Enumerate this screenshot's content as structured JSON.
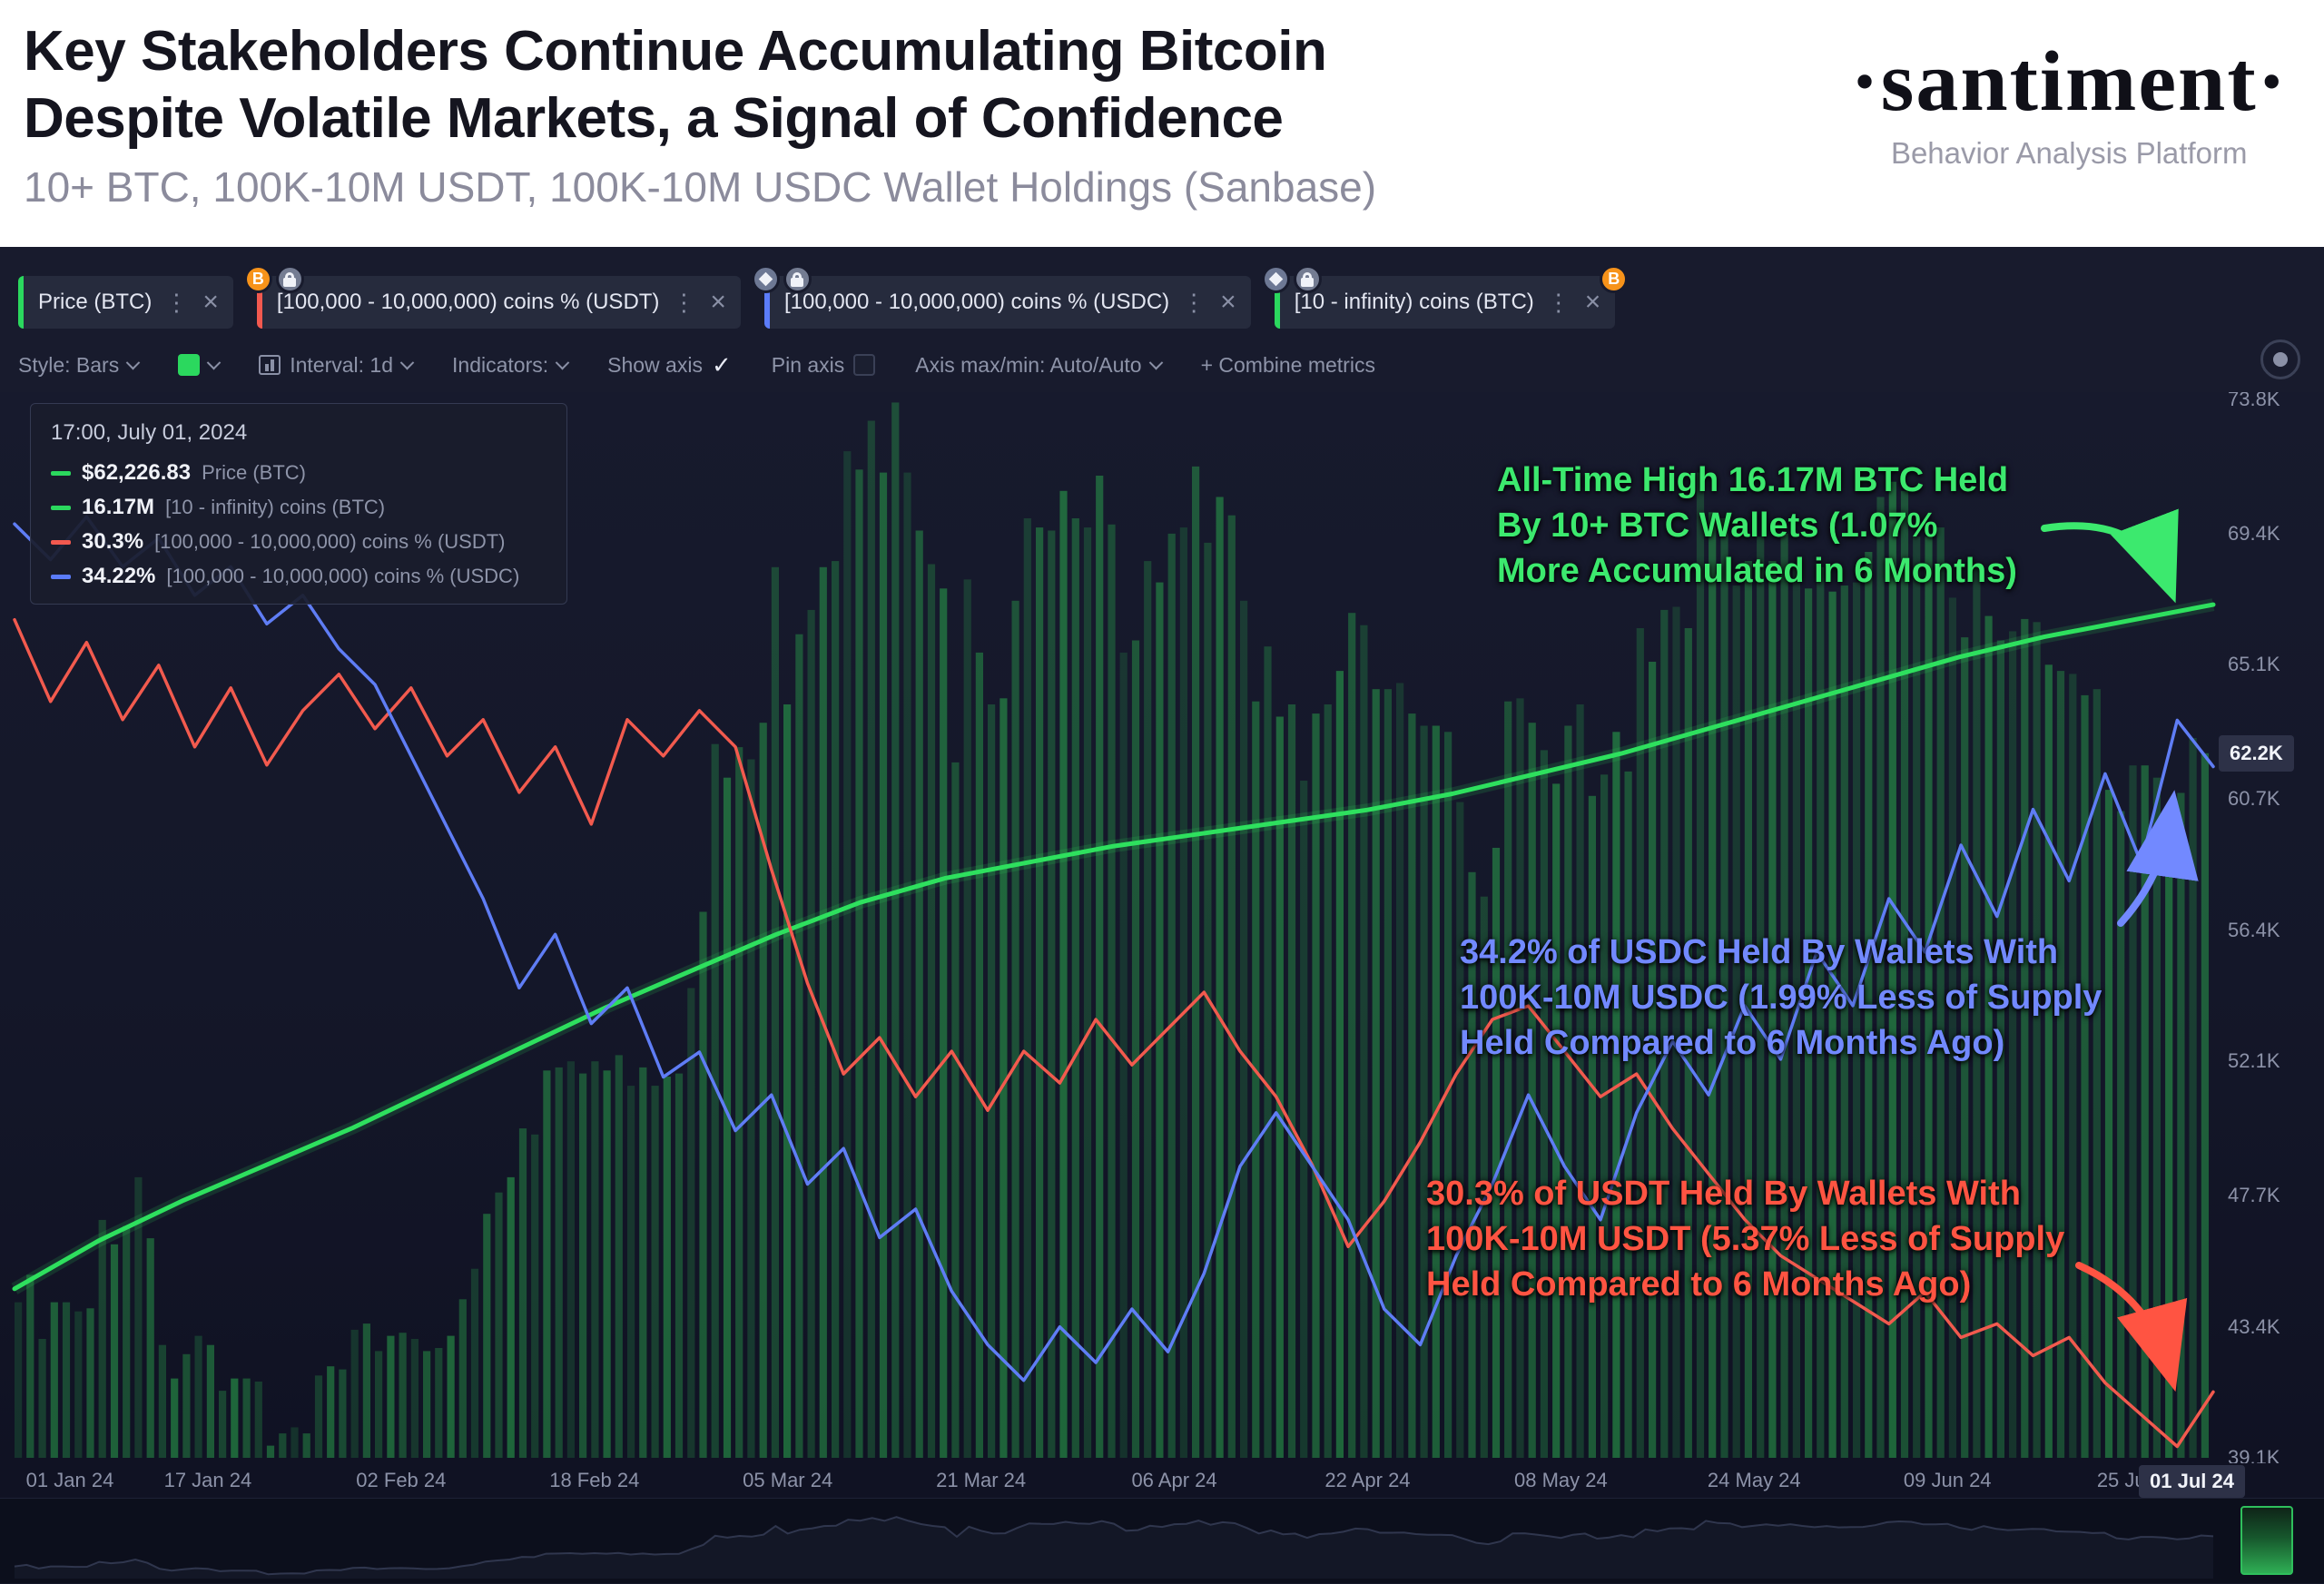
{
  "header": {
    "title_line1": "Key Stakeholders Continue Accumulating Bitcoin",
    "title_line2": "Despite Volatile Markets, a Signal of Confidence",
    "subtitle": "10+ BTC, 100K-10M USDT, 100K-10M USDC Wallet Holdings (Sanbase)",
    "brand": "·santiment·",
    "brand_tagline": "Behavior Analysis Platform"
  },
  "icons": {
    "kebab": "⋮",
    "close": "×",
    "check": "✓"
  },
  "tabs": [
    {
      "label": "Price (BTC)",
      "accent": "#2bd85e"
    },
    {
      "label": "[100,000 - 10,000,000) coins % (USDT)",
      "accent": "#f2594f"
    },
    {
      "label": "[100,000 - 10,000,000) coins % (USDC)",
      "accent": "#5b7cfa"
    },
    {
      "label": "[10 - infinity) coins (BTC)",
      "accent": "#2bd85e"
    }
  ],
  "toolbar": {
    "style_label": "Style: Bars",
    "interval_label": "Interval: 1d",
    "indicators_label": "Indicators:",
    "show_axis": "Show axis",
    "pin_axis": "Pin axis",
    "axis_maxmin": "Axis max/min: Auto/Auto",
    "combine_metrics": "+ Combine metrics"
  },
  "tooltip": {
    "timestamp": "17:00, July 01, 2024",
    "rows": [
      {
        "dash": "#2bd85e",
        "value": "$62,226.83",
        "label": "Price (BTC)"
      },
      {
        "dash": "#2bd85e",
        "value": "16.17M",
        "label": "[10 - infinity) coins (BTC)"
      },
      {
        "dash": "#f2594f",
        "value": "30.3%",
        "label": "[100,000 - 10,000,000) coins % (USDT)"
      },
      {
        "dash": "#5b7cfa",
        "value": "34.22%",
        "label": "[100,000 - 10,000,000) coins % (USDC)"
      }
    ]
  },
  "annotations": [
    {
      "color": "#3ce96e",
      "lines": [
        "All-Time High 16.17M BTC Held",
        "By 10+ BTC Wallets (1.07%",
        "More Accumulated in 6 Months)"
      ]
    },
    {
      "color": "#7289ff",
      "lines": [
        "34.2% of USDC Held By Wallets With",
        "100K-10M USDC (1.99% Less of Supply",
        "Held Compared to 6 Months Ago)"
      ]
    },
    {
      "color": "#ff5442",
      "lines": [
        "30.3% of USDT Held By Wallets With",
        "100K-10M USDT (5.37% Less of Supply",
        "Held Compared to 6 Months Ago)"
      ]
    }
  ],
  "axis": {
    "y_labels": [
      {
        "label": "73.8K",
        "value": 73.8
      },
      {
        "label": "69.4K",
        "value": 69.4
      },
      {
        "label": "65.1K",
        "value": 65.1
      },
      {
        "label": "60.7K",
        "value": 60.7
      },
      {
        "label": "56.4K",
        "value": 56.4
      },
      {
        "label": "52.1K",
        "value": 52.1
      },
      {
        "label": "47.7K",
        "value": 47.7
      },
      {
        "label": "43.4K",
        "value": 43.4
      },
      {
        "label": "39.1K",
        "value": 39.1
      }
    ],
    "y_badge": {
      "label": "62.2K",
      "value": 62.2
    },
    "x_labels": [
      {
        "label": "01 Jan 24",
        "day": 0
      },
      {
        "label": "17 Jan 24",
        "day": 16
      },
      {
        "label": "02 Feb 24",
        "day": 32
      },
      {
        "label": "18 Feb 24",
        "day": 48
      },
      {
        "label": "05 Mar 24",
        "day": 64
      },
      {
        "label": "21 Mar 24",
        "day": 80
      },
      {
        "label": "06 Apr 24",
        "day": 96
      },
      {
        "label": "22 Apr 24",
        "day": 112
      },
      {
        "label": "08 May 24",
        "day": 128
      },
      {
        "label": "24 May 24",
        "day": 144
      },
      {
        "label": "09 Jun 24",
        "day": 160
      },
      {
        "label": "25 Jun 24",
        "day": 176
      }
    ],
    "x_badge": {
      "label": "01 Jul 24",
      "day": 182
    }
  },
  "chart_data": {
    "type": "mixed",
    "title": "10+ BTC, 100K-10M USDT, 100K-10M USDC Wallet Holdings",
    "x_range": [
      "01 Jan 24",
      "01 Jul 24"
    ],
    "x_range_days": 182,
    "legend_position": "top-left-tooltip",
    "grid": false,
    "series": [
      {
        "name": "Price (BTC)",
        "type": "bar",
        "unit": "K USD",
        "color": "#2aa24c",
        "ylim": [
          39.1,
          73.8
        ],
        "values": [
          44.2,
          45.1,
          43.0,
          44.2,
          44.2,
          43.9,
          44.0,
          46.9,
          46.1,
          46.7,
          48.3,
          46.3,
          42.8,
          41.7,
          42.5,
          43.1,
          42.8,
          41.3,
          41.7,
          41.7,
          41.6,
          39.5,
          39.9,
          40.1,
          39.9,
          41.8,
          42.1,
          42.0,
          43.3,
          43.5,
          42.6,
          43.1,
          43.2,
          43.0,
          42.6,
          42.7,
          43.1,
          44.3,
          45.3,
          47.1,
          47.8,
          48.3,
          49.9,
          49.7,
          51.8,
          51.9,
          52.1,
          51.7,
          52.1,
          51.8,
          52.3,
          51.3,
          51.9,
          51.3,
          51.6,
          51.7,
          54.5,
          57.0,
          62.5,
          61.4,
          62.4,
          62.0,
          63.2,
          68.3,
          63.8,
          66.1,
          66.9,
          68.3,
          68.5,
          72.1,
          71.5,
          73.1,
          71.4,
          73.7,
          71.4,
          69.5,
          68.4,
          67.6,
          61.9,
          67.9,
          65.5,
          63.8,
          64.0,
          67.2,
          69.9,
          69.6,
          69.5,
          70.8,
          69.9,
          69.6,
          71.3,
          69.7,
          65.5,
          65.9,
          68.5,
          67.8,
          69.4,
          69.6,
          71.6,
          69.1,
          70.6,
          70.0,
          67.2,
          63.9,
          65.7,
          63.4,
          63.8,
          61.3,
          63.5,
          63.8,
          64.9,
          66.8,
          66.4,
          64.3,
          64.3,
          64.5,
          63.5,
          63.1,
          63.1,
          62.9,
          60.6,
          58.3,
          57.5,
          59.1,
          63.9,
          64.0,
          63.2,
          62.3,
          61.2,
          63.1,
          63.8,
          60.8,
          61.5,
          62.9,
          61.6,
          66.3,
          65.2,
          66.9,
          67.0,
          66.3,
          71.4,
          70.1,
          69.9,
          67.7,
          68.5,
          69.3,
          68.5,
          69.4,
          68.4,
          67.6,
          68.3,
          67.5,
          67.7,
          67.8,
          68.8,
          70.6,
          71.1,
          70.8,
          69.3,
          69.3,
          69.6,
          67.3,
          66.0,
          68.3,
          66.7,
          65.9,
          66.2,
          66.6,
          66.5,
          65.1,
          64.9,
          64.8,
          64.1,
          64.3,
          61.0,
          60.3,
          61.8,
          61.8,
          61.4,
          60.4,
          60.9,
          62.7,
          62.2
        ]
      },
      {
        "name": "[10 - infinity) coins (BTC)",
        "type": "line",
        "unit": "M BTC",
        "color": "#2ee05e",
        "glow": true,
        "ylim": [
          15.958,
          16.221
        ],
        "values": [
          16.0,
          16.012,
          16.022,
          16.031,
          16.04,
          16.05,
          16.06,
          16.07,
          16.079,
          16.088,
          16.096,
          16.102,
          16.106,
          16.11,
          16.113,
          16.116,
          16.119,
          16.123,
          16.128,
          16.133,
          16.139,
          16.145,
          16.151,
          16.157,
          16.162,
          16.166,
          16.17
        ]
      },
      {
        "name": "[100,000 - 10,000,000) coins % (USDT)",
        "type": "line",
        "unit": "%",
        "color": "#f25a4e",
        "ylim": [
          30.155,
          32.485
        ],
        "values": [
          32.0,
          31.82,
          31.95,
          31.78,
          31.9,
          31.72,
          31.85,
          31.68,
          31.8,
          31.88,
          31.76,
          31.85,
          31.7,
          31.78,
          31.62,
          31.72,
          31.55,
          31.78,
          31.7,
          31.8,
          31.72,
          31.45,
          31.2,
          31.0,
          31.08,
          30.95,
          31.05,
          30.92,
          31.05,
          30.98,
          31.12,
          31.02,
          31.1,
          31.18,
          31.05,
          30.95,
          30.8,
          30.62,
          30.72,
          30.85,
          31.0,
          31.12,
          31.15,
          31.05,
          30.95,
          31.0,
          30.88,
          30.78,
          30.68,
          30.6,
          30.55,
          30.5,
          30.45,
          30.52,
          30.42,
          30.45,
          30.38,
          30.42,
          30.32,
          30.25,
          30.18,
          30.3
        ]
      },
      {
        "name": "[100,000 - 10,000,000) coins % (USDC)",
        "type": "line",
        "unit": "%",
        "color": "#5f7df5",
        "ylim": [
          32.283,
          35.249
        ],
        "values": [
          34.9,
          34.8,
          34.92,
          34.78,
          34.86,
          34.7,
          34.78,
          34.62,
          34.7,
          34.55,
          34.45,
          34.25,
          34.05,
          33.85,
          33.6,
          33.75,
          33.5,
          33.6,
          33.35,
          33.42,
          33.2,
          33.3,
          33.05,
          33.15,
          32.9,
          32.98,
          32.75,
          32.6,
          32.5,
          32.65,
          32.55,
          32.7,
          32.58,
          32.8,
          33.1,
          33.25,
          33.1,
          32.95,
          32.7,
          32.6,
          32.85,
          33.05,
          33.3,
          33.1,
          32.95,
          33.25,
          33.45,
          33.3,
          33.55,
          33.4,
          33.7,
          33.55,
          33.85,
          33.7,
          34.0,
          33.8,
          34.1,
          33.9,
          34.2,
          33.95,
          34.35,
          34.22
        ]
      }
    ]
  }
}
